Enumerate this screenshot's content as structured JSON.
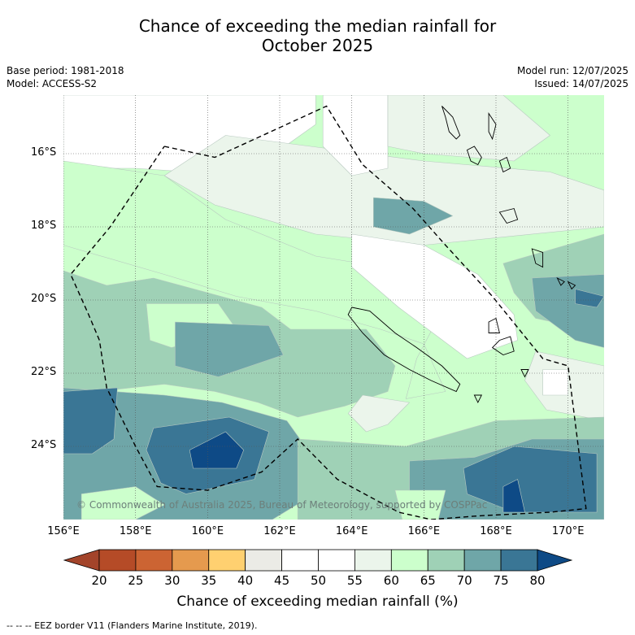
{
  "title": {
    "line1": "Chance of exceeding the median rainfall for",
    "line2": "October 2025"
  },
  "meta_left": {
    "base_period": "Base period: 1981-2018",
    "model": "Model: ACCESS-S2"
  },
  "meta_right": {
    "model_run": "Model run: 12/07/2025",
    "issued": "Issued: 14/07/2025"
  },
  "copyright": "© Commonwealth of Australia 2025, Bureau of Meteorology, supported by COSPPac",
  "map": {
    "lon_range": [
      156,
      171
    ],
    "lat_range": [
      -26.0,
      -14.4
    ],
    "lat_ticks": [
      {
        "value": -16,
        "label": "16°S"
      },
      {
        "value": -18,
        "label": "18°S"
      },
      {
        "value": -20,
        "label": "20°S"
      },
      {
        "value": -22,
        "label": "22°S"
      },
      {
        "value": -24,
        "label": "24°S"
      }
    ],
    "lon_ticks": [
      {
        "value": 156,
        "label": "156°E"
      },
      {
        "value": 158,
        "label": "158°E"
      },
      {
        "value": 160,
        "label": "160°E"
      },
      {
        "value": 162,
        "label": "162°E"
      },
      {
        "value": 164,
        "label": "164°E"
      },
      {
        "value": 166,
        "label": "166°E"
      },
      {
        "value": 168,
        "label": "168°E"
      },
      {
        "value": 170,
        "label": "170°E"
      }
    ],
    "eez_border": [
      [
        158.8,
        -15.8
      ],
      [
        160.2,
        -16.1
      ],
      [
        163.3,
        -14.7
      ],
      [
        164.3,
        -16.3
      ],
      [
        165.7,
        -17.5
      ],
      [
        166.6,
        -18.5
      ],
      [
        167.9,
        -19.9
      ],
      [
        169.3,
        -21.6
      ],
      [
        170.0,
        -21.8
      ],
      [
        170.5,
        -25.7
      ],
      [
        169.5,
        -25.8
      ],
      [
        167.5,
        -25.9
      ],
      [
        166.2,
        -26.0
      ],
      [
        165.3,
        -25.8
      ],
      [
        163.6,
        -24.9
      ],
      [
        162.5,
        -23.8
      ],
      [
        161.5,
        -24.7
      ],
      [
        160.0,
        -25.2
      ],
      [
        158.6,
        -25.1
      ],
      [
        158.0,
        -24.0
      ],
      [
        157.2,
        -22.4
      ],
      [
        157.0,
        -21.1
      ],
      [
        156.7,
        -20.4
      ],
      [
        156.2,
        -19.3
      ],
      [
        157.3,
        -18.0
      ],
      [
        158.8,
        -15.8
      ]
    ],
    "regions": [
      {
        "category": "45-50",
        "color": "#ffffff",
        "points": [
          [
            156,
            -14.4
          ],
          [
            163,
            -14.4
          ],
          [
            163,
            -15.2
          ],
          [
            161,
            -16.6
          ],
          [
            158,
            -16.4
          ],
          [
            156,
            -16.4
          ]
        ]
      },
      {
        "category": "55-60",
        "color": "#ebf5eb",
        "points": [
          [
            160.5,
            -15.5
          ],
          [
            166,
            -16.2
          ],
          [
            169.5,
            -16.5
          ],
          [
            171,
            -17.0
          ],
          [
            171,
            -18.0
          ],
          [
            166,
            -18.5
          ],
          [
            163,
            -18.2
          ],
          [
            160.2,
            -17.4
          ],
          [
            158.8,
            -16.6
          ]
        ]
      },
      {
        "category": "50-55",
        "color": "#ffffff",
        "points": [
          [
            163.2,
            -14.4
          ],
          [
            165,
            -14.4
          ],
          [
            165,
            -16.4
          ],
          [
            164.0,
            -16.6
          ],
          [
            163.2,
            -15.8
          ]
        ]
      },
      {
        "category": "55-60",
        "color": "#ebf5eb",
        "points": [
          [
            165,
            -14.4
          ],
          [
            168.2,
            -14.4
          ],
          [
            169.5,
            -15.5
          ],
          [
            168.5,
            -16.2
          ],
          [
            166,
            -16.0
          ],
          [
            165,
            -15.8
          ]
        ]
      },
      {
        "category": "60-65",
        "color": "#ccffcc",
        "points": [
          [
            156,
            -16.2
          ],
          [
            158.8,
            -16.6
          ],
          [
            160.5,
            -17.8
          ],
          [
            163,
            -18.8
          ],
          [
            165.5,
            -19.2
          ],
          [
            166.5,
            -20.3
          ],
          [
            165.8,
            -21.6
          ],
          [
            165.5,
            -22.7
          ],
          [
            166.6,
            -22.5
          ],
          [
            166,
            -21.2
          ],
          [
            164.8,
            -20.8
          ],
          [
            163,
            -20.3
          ],
          [
            160.8,
            -19.9
          ],
          [
            158.8,
            -19.3
          ],
          [
            156,
            -18.5
          ]
        ]
      },
      {
        "category": "50-55",
        "color": "#ffffff",
        "points": [
          [
            164.0,
            -18.2
          ],
          [
            166.0,
            -18.5
          ],
          [
            167.5,
            -19.3
          ],
          [
            168.5,
            -20.4
          ],
          [
            168.6,
            -21.1
          ],
          [
            167.2,
            -21.6
          ],
          [
            165.3,
            -20.2
          ],
          [
            164.0,
            -19.1
          ]
        ]
      },
      {
        "category": "55-60",
        "color": "#ebf5eb",
        "points": [
          [
            169.1,
            -21.4
          ],
          [
            171,
            -21.8
          ],
          [
            171,
            -23.3
          ],
          [
            169.4,
            -23.0
          ],
          [
            168.8,
            -22.2
          ]
        ]
      },
      {
        "category": "50-55",
        "color": "#ffffff",
        "points": [
          [
            169.3,
            -21.9
          ],
          [
            170.0,
            -21.9
          ],
          [
            170.0,
            -22.6
          ],
          [
            169.3,
            -22.6
          ]
        ]
      },
      {
        "category": "70-75",
        "color": "#6fa6a8",
        "points": [
          [
            164.6,
            -17.2
          ],
          [
            166.0,
            -17.3
          ],
          [
            166.8,
            -17.7
          ],
          [
            165.6,
            -18.2
          ],
          [
            164.6,
            -18.0
          ]
        ]
      },
      {
        "category": "65-70",
        "color": "#9fd1b6",
        "points": [
          [
            156,
            -19.2
          ],
          [
            157.2,
            -19.6
          ],
          [
            158.5,
            -19.4
          ],
          [
            160,
            -19.8
          ],
          [
            161.5,
            -20.2
          ],
          [
            162.3,
            -20.8
          ],
          [
            164.4,
            -20.8
          ],
          [
            165.2,
            -21.8
          ],
          [
            165.0,
            -22.5
          ],
          [
            163.8,
            -22.9
          ],
          [
            162.5,
            -23.2
          ],
          [
            161.4,
            -22.8
          ],
          [
            160.2,
            -22.5
          ],
          [
            158.8,
            -22.3
          ],
          [
            156,
            -22.6
          ]
        ]
      },
      {
        "category": "60-65",
        "color": "#ccffcc",
        "points": [
          [
            158.3,
            -20.1
          ],
          [
            160.3,
            -20.1
          ],
          [
            160.8,
            -20.8
          ],
          [
            159.0,
            -21.3
          ],
          [
            158.4,
            -21.1
          ]
        ]
      },
      {
        "category": "70-75",
        "color": "#6fa6a8",
        "points": [
          [
            159.1,
            -20.6
          ],
          [
            161.7,
            -20.7
          ],
          [
            162.1,
            -21.5
          ],
          [
            160.3,
            -22.1
          ],
          [
            159.1,
            -21.8
          ]
        ]
      },
      {
        "category": "65-70",
        "color": "#9fd1b6",
        "points": [
          [
            168.2,
            -19.0
          ],
          [
            171,
            -18.2
          ],
          [
            171,
            -20.9
          ],
          [
            169.1,
            -20.5
          ],
          [
            168.5,
            -19.8
          ]
        ]
      },
      {
        "category": "70-75",
        "color": "#6fa6a8",
        "points": [
          [
            169.0,
            -19.4
          ],
          [
            171,
            -19.3
          ],
          [
            171,
            -21.3
          ],
          [
            170.2,
            -21.1
          ],
          [
            169.1,
            -20.3
          ]
        ]
      },
      {
        "category": "75-80",
        "color": "#3a7695",
        "points": [
          [
            170.2,
            -19.7
          ],
          [
            171,
            -19.9
          ],
          [
            170.8,
            -20.2
          ],
          [
            170.2,
            -20.1
          ]
        ]
      },
      {
        "category": "70-75",
        "color": "#6fa6a8",
        "points": [
          [
            156,
            -22.4
          ],
          [
            158.8,
            -22.6
          ],
          [
            160.4,
            -22.8
          ],
          [
            162.2,
            -23.3
          ],
          [
            163,
            -24.4
          ],
          [
            162.8,
            -25.4
          ],
          [
            161.8,
            -26.0
          ],
          [
            156,
            -26.0
          ]
        ]
      },
      {
        "category": "75-80",
        "color": "#3a7695",
        "points": [
          [
            156,
            -22.5
          ],
          [
            157.5,
            -22.4
          ],
          [
            157.4,
            -23.8
          ],
          [
            156.8,
            -24.2
          ],
          [
            156,
            -24.2
          ]
        ]
      },
      {
        "category": "75-80",
        "color": "#3a7695",
        "points": [
          [
            158.5,
            -23.5
          ],
          [
            160.6,
            -23.2
          ],
          [
            161.7,
            -23.6
          ],
          [
            161.3,
            -24.9
          ],
          [
            159.4,
            -25.3
          ],
          [
            158.7,
            -25.0
          ],
          [
            158.3,
            -24.1
          ]
        ]
      },
      {
        "category": "80+",
        "color": "#0e4a86",
        "points": [
          [
            159.5,
            -24.1
          ],
          [
            160.5,
            -23.6
          ],
          [
            161.0,
            -24.1
          ],
          [
            160.8,
            -24.6
          ],
          [
            159.6,
            -24.6
          ]
        ]
      },
      {
        "category": "65-70",
        "color": "#9fd1b6",
        "points": [
          [
            162.5,
            -23.8
          ],
          [
            165.5,
            -24.0
          ],
          [
            168,
            -23.3
          ],
          [
            171,
            -23.2
          ],
          [
            171,
            -26.0
          ],
          [
            162.5,
            -26.0
          ]
        ]
      },
      {
        "category": "70-75",
        "color": "#6fa6a8",
        "points": [
          [
            165.6,
            -24.4
          ],
          [
            167.4,
            -24.3
          ],
          [
            169,
            -23.8
          ],
          [
            171,
            -23.8
          ],
          [
            171,
            -26.0
          ],
          [
            165.6,
            -26.0
          ]
        ]
      },
      {
        "category": "75-80",
        "color": "#3a7695",
        "points": [
          [
            167.1,
            -24.6
          ],
          [
            168.5,
            -24.0
          ],
          [
            170.8,
            -24.2
          ],
          [
            170.8,
            -25.8
          ],
          [
            168.5,
            -25.8
          ],
          [
            167.2,
            -25.3
          ]
        ]
      },
      {
        "category": "80+",
        "color": "#0e4a86",
        "points": [
          [
            168.2,
            -25.1
          ],
          [
            168.6,
            -24.9
          ],
          [
            168.8,
            -25.8
          ],
          [
            168.2,
            -25.8
          ]
        ]
      },
      {
        "category": "55-60",
        "color": "#ebf5eb",
        "points": [
          [
            164.3,
            -22.6
          ],
          [
            165.6,
            -22.8
          ],
          [
            165.0,
            -23.4
          ],
          [
            164.4,
            -23.6
          ],
          [
            163.9,
            -23.1
          ]
        ]
      },
      {
        "category": "60-65",
        "color": "#ccffcc",
        "points": [
          [
            156.5,
            -25.3
          ],
          [
            158.0,
            -25.1
          ],
          [
            158.8,
            -25.6
          ],
          [
            158.0,
            -26.0
          ],
          [
            156.5,
            -26.0
          ]
        ]
      },
      {
        "category": "60-65",
        "color": "#ccffcc",
        "points": [
          [
            165.2,
            -25.2
          ],
          [
            166.6,
            -25.2
          ],
          [
            166.4,
            -26.0
          ],
          [
            165.4,
            -26.0
          ]
        ]
      }
    ],
    "islands": [
      [
        [
          166.5,
          -14.7
        ],
        [
          166.8,
          -15.0
        ],
        [
          167.0,
          -15.5
        ],
        [
          166.9,
          -15.6
        ],
        [
          166.7,
          -15.4
        ],
        [
          166.6,
          -15.0
        ]
      ],
      [
        [
          167.8,
          -14.9
        ],
        [
          168.0,
          -15.2
        ],
        [
          167.9,
          -15.6
        ],
        [
          167.8,
          -15.4
        ]
      ],
      [
        [
          167.2,
          -15.9
        ],
        [
          167.4,
          -15.8
        ],
        [
          167.6,
          -16.1
        ],
        [
          167.5,
          -16.3
        ],
        [
          167.3,
          -16.2
        ]
      ],
      [
        [
          168.1,
          -16.2
        ],
        [
          168.3,
          -16.1
        ],
        [
          168.4,
          -16.4
        ],
        [
          168.2,
          -16.5
        ]
      ],
      [
        [
          168.1,
          -17.6
        ],
        [
          168.5,
          -17.5
        ],
        [
          168.6,
          -17.8
        ],
        [
          168.3,
          -17.9
        ]
      ],
      [
        [
          169.0,
          -18.6
        ],
        [
          169.3,
          -18.7
        ],
        [
          169.3,
          -19.1
        ],
        [
          169.1,
          -19.0
        ]
      ],
      [
        [
          169.7,
          -19.4
        ],
        [
          169.9,
          -19.5
        ],
        [
          169.8,
          -19.6
        ]
      ],
      [
        [
          168.1,
          -21.1
        ],
        [
          168.4,
          -21.0
        ],
        [
          168.5,
          -21.4
        ],
        [
          168.2,
          -21.5
        ],
        [
          167.9,
          -21.3
        ]
      ],
      [
        [
          167.8,
          -20.6
        ],
        [
          168.0,
          -20.5
        ],
        [
          168.1,
          -20.9
        ],
        [
          167.8,
          -20.9
        ]
      ],
      [
        [
          168.7,
          -21.9
        ],
        [
          168.9,
          -21.9
        ],
        [
          168.8,
          -22.1
        ]
      ],
      [
        [
          164.0,
          -20.2
        ],
        [
          164.5,
          -20.3
        ],
        [
          165.2,
          -20.9
        ],
        [
          165.8,
          -21.3
        ],
        [
          166.5,
          -21.8
        ],
        [
          167.0,
          -22.3
        ],
        [
          166.9,
          -22.5
        ],
        [
          166.2,
          -22.2
        ],
        [
          165.6,
          -21.9
        ],
        [
          164.9,
          -21.5
        ],
        [
          164.3,
          -20.9
        ],
        [
          163.9,
          -20.4
        ]
      ],
      [
        [
          167.4,
          -22.6
        ],
        [
          167.6,
          -22.6
        ],
        [
          167.5,
          -22.8
        ]
      ],
      [
        [
          170.0,
          -19.5
        ],
        [
          170.2,
          -19.6
        ],
        [
          170.1,
          -19.7
        ]
      ]
    ]
  },
  "colorbar": {
    "colors": [
      "#a3442a",
      "#b54b27",
      "#cc6433",
      "#e59a4e",
      "#ffd070",
      "#ebebe6",
      "#ffffff",
      "#ffffff",
      "#ebf5eb",
      "#ccffcc",
      "#9fd1b6",
      "#6fa6a8",
      "#3a7695",
      "#0e4a86"
    ],
    "ticks": [
      "20",
      "25",
      "30",
      "35",
      "40",
      "45",
      "50",
      "55",
      "60",
      "65",
      "70",
      "75",
      "80"
    ],
    "label": "Chance of exceeding median rainfall (%)"
  },
  "legend": {
    "eez": "--  --  -- EEZ border V11 (Flanders Marine Institute, 2019)."
  }
}
